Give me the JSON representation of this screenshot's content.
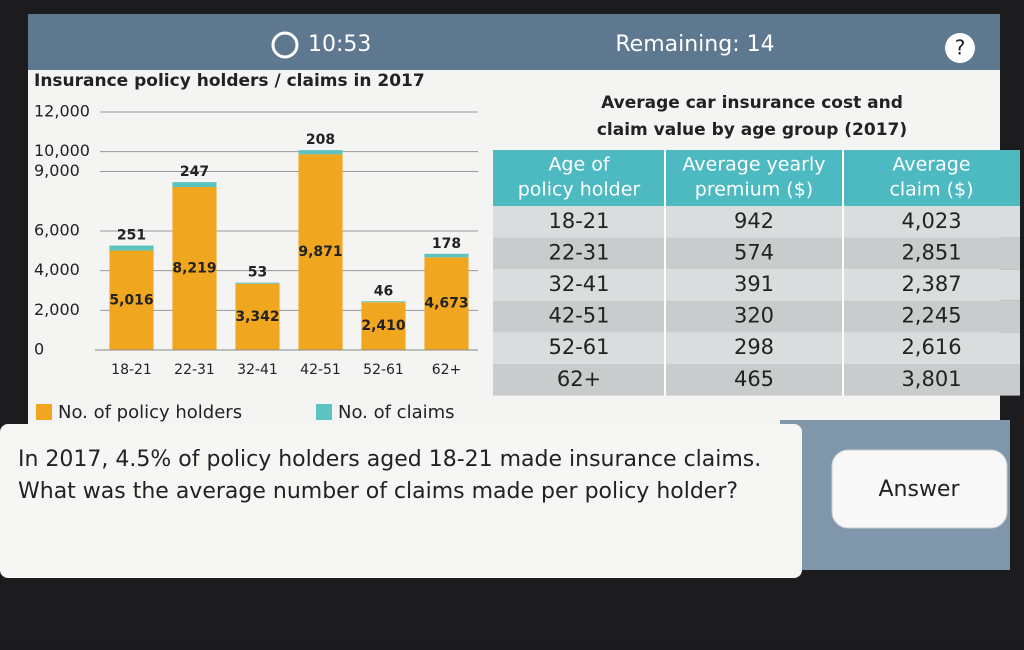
{
  "header": {
    "timer": "10:53",
    "remaining": "Remaining: 14",
    "help": "?"
  },
  "chart_data": {
    "type": "bar",
    "stacked": true,
    "title": "Insurance policy holders / claims in 2017",
    "categories": [
      "18-21",
      "22-31",
      "32-41",
      "42-51",
      "52-61",
      "62+"
    ],
    "series": [
      {
        "name": "No. of policy holders",
        "color": "#f0a71f",
        "values": [
          5016,
          8219,
          3342,
          9871,
          2410,
          4673
        ],
        "value_labels": [
          "5,016",
          "8,219",
          "3,342",
          "9,871",
          "2,410",
          "4,673"
        ]
      },
      {
        "name": "No. of claims",
        "color": "#5cc3c0",
        "values": [
          251,
          247,
          53,
          208,
          46,
          178
        ]
      }
    ],
    "ylim": [
      0,
      12000
    ],
    "yticks": [
      0,
      {
        "value": 2000,
        "label": "2,000"
      },
      {
        "value": 4000,
        "label": "4,000"
      },
      {
        "value": 6000,
        "label": "6,000"
      },
      {
        "value": 9000,
        "label": "9,000"
      },
      {
        "value": 10000,
        "label": "10,000"
      },
      {
        "value": 12000,
        "label": "12,000"
      }
    ],
    "grid": true
  },
  "table": {
    "title_lines": [
      "Average car insurance cost and",
      "claim value by age group (2017)"
    ],
    "columns": [
      [
        "Age of",
        "policy holder"
      ],
      [
        "Average yearly",
        "premium ($)"
      ],
      [
        "Average",
        "claim ($)"
      ]
    ],
    "rows": [
      [
        "18-21",
        "942",
        "4,023"
      ],
      [
        "22-31",
        "574",
        "2,851"
      ],
      [
        "32-41",
        "391",
        "2,387"
      ],
      [
        "42-51",
        "320",
        "2,245"
      ],
      [
        "52-61",
        "298",
        "2,616"
      ],
      [
        "62+",
        "465",
        "3,801"
      ]
    ]
  },
  "question": [
    "In 2017, 4.5% of policy holders aged 18-21 made insurance claims.",
    "What was the average number of claims made per policy holder?"
  ],
  "answer_button": "Answer"
}
